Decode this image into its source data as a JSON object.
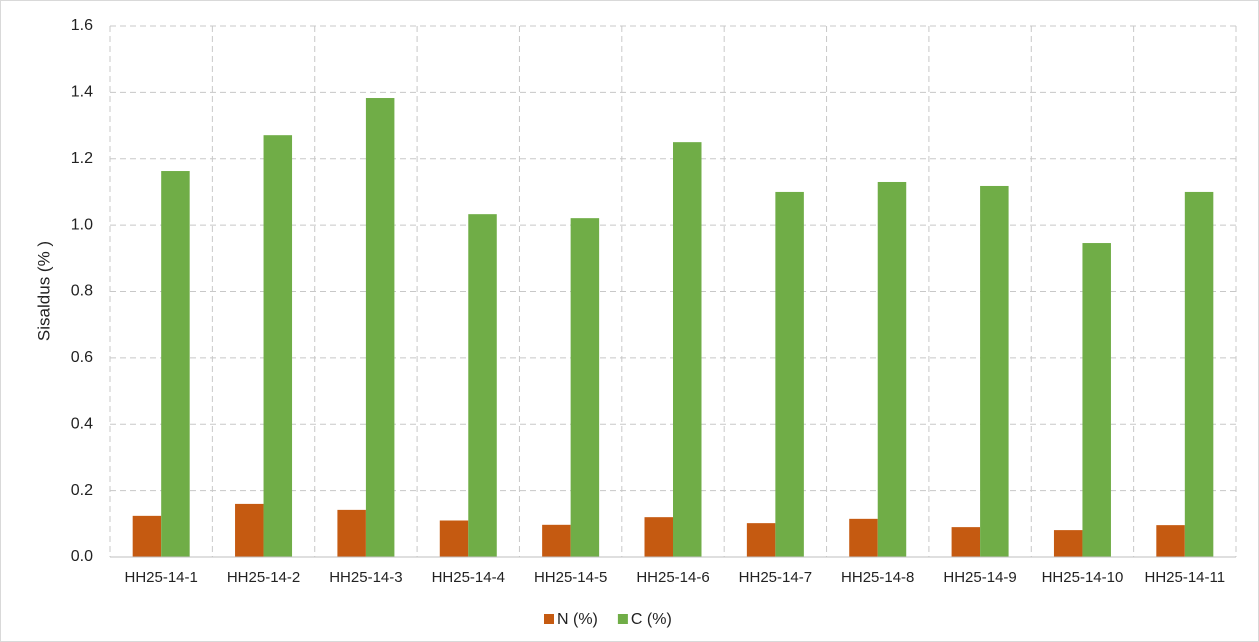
{
  "chart_data": {
    "type": "bar",
    "y_label": "Sisaldus (% )",
    "categories": [
      "HH25-14-1",
      "HH25-14-2",
      "HH25-14-3",
      "HH25-14-4",
      "HH25-14-5",
      "HH25-14-6",
      "HH25-14-7",
      "HH25-14-8",
      "HH25-14-9",
      "HH25-14-10",
      "HH25-14-11"
    ],
    "series": [
      {
        "name": "N (%)",
        "color": "#c55a11",
        "values": [
          0.124,
          0.16,
          0.142,
          0.11,
          0.097,
          0.12,
          0.102,
          0.115,
          0.09,
          0.081,
          0.096
        ]
      },
      {
        "name": "C (%)",
        "color": "#70ad47",
        "values": [
          1.163,
          1.271,
          1.383,
          1.033,
          1.021,
          1.25,
          1.1,
          1.13,
          1.118,
          0.946,
          1.1
        ]
      }
    ],
    "ylim": [
      0,
      1.6
    ],
    "yticks": [
      {
        "value": 0,
        "label": "0.0"
      },
      0.2,
      0.4,
      0.6,
      0.8,
      {
        "value": 1,
        "label": "1.0"
      },
      1.2,
      1.4,
      1.6
    ],
    "grid": true,
    "legend": "bottom"
  }
}
